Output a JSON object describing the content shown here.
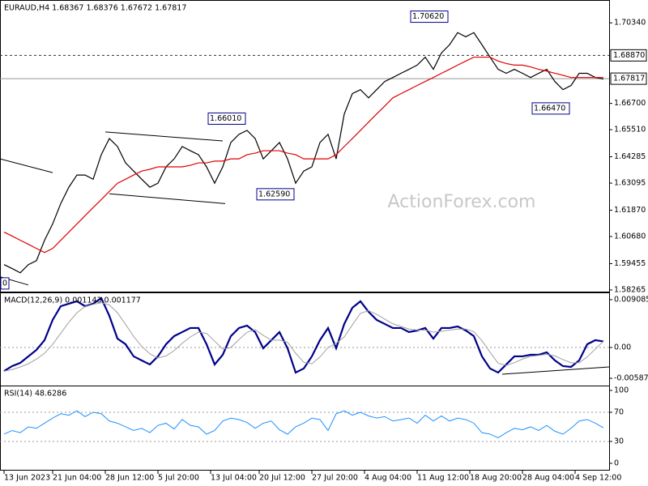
{
  "chart_data": [
    {
      "type": "line",
      "title": "EURAUD,H4  1.68367 1.68376 1.67672 1.67817",
      "watermark": "ActionForex.com",
      "x": [
        0,
        1,
        2,
        3,
        4,
        5,
        6,
        7,
        8,
        9,
        10,
        11,
        12,
        13,
        14,
        15,
        16,
        17,
        18,
        19,
        20,
        21,
        22,
        23,
        24,
        25,
        26,
        27,
        28,
        29,
        30,
        31,
        32,
        33,
        34,
        35,
        36,
        37,
        38,
        39,
        40,
        41,
        42,
        43,
        44,
        45,
        46,
        47,
        48,
        49,
        50,
        51,
        52,
        53,
        54,
        55,
        56,
        57,
        58,
        59,
        60,
        61,
        62,
        63,
        64,
        65,
        66,
        67,
        68,
        69,
        70,
        71,
        72,
        73,
        74
      ],
      "series": [
        {
          "color": "#000000",
          "width": 1.2,
          "values": [
            1.5941,
            1.5923,
            1.5904,
            1.5941,
            1.5959,
            1.6051,
            1.6125,
            1.6217,
            1.6291,
            1.6346,
            1.6346,
            1.6327,
            1.6438,
            1.6511,
            1.6475,
            1.6401,
            1.6364,
            1.6327,
            1.6291,
            1.6309,
            1.6383,
            1.6419,
            1.6475,
            1.6456,
            1.6438,
            1.6383,
            1.6309,
            1.6383,
            1.6493,
            1.653,
            1.6548,
            1.6511,
            1.6419,
            1.6456,
            1.6493,
            1.6419,
            1.6309,
            1.6364,
            1.6383,
            1.6493,
            1.653,
            1.6419,
            1.6622,
            1.6714,
            1.6732,
            1.6695,
            1.6732,
            1.6769,
            1.6787,
            1.6806,
            1.6824,
            1.6843,
            1.6879,
            1.6824,
            1.6898,
            1.6935,
            1.699,
            1.6971,
            1.699,
            1.6935,
            1.6879,
            1.6824,
            1.6806,
            1.6824,
            1.6806,
            1.6787,
            1.6806,
            1.6824,
            1.6769,
            1.6732,
            1.6751,
            1.6806,
            1.6806,
            1.6787,
            1.678
          ]
        },
        {
          "color": "#e00000",
          "width": 1.2,
          "values": [
            1.6088,
            1.607,
            1.6051,
            1.6033,
            1.6014,
            1.5996,
            1.6014,
            1.6051,
            1.6088,
            1.6125,
            1.6162,
            1.6199,
            1.6235,
            1.6272,
            1.6309,
            1.6327,
            1.6346,
            1.6364,
            1.6372,
            1.6383,
            1.6383,
            1.6383,
            1.6383,
            1.639,
            1.6401,
            1.6401,
            1.6409,
            1.6409,
            1.6419,
            1.6419,
            1.6438,
            1.6445,
            1.6456,
            1.6456,
            1.6456,
            1.6445,
            1.6438,
            1.6419,
            1.6419,
            1.6419,
            1.6419,
            1.6438,
            1.6475,
            1.6511,
            1.6548,
            1.6585,
            1.6622,
            1.6658,
            1.6695,
            1.6714,
            1.6732,
            1.6751,
            1.6769,
            1.6787,
            1.6806,
            1.6824,
            1.6843,
            1.6861,
            1.6879,
            1.6879,
            1.6879,
            1.6861,
            1.685,
            1.6843,
            1.6843,
            1.6835,
            1.6824,
            1.6816,
            1.6806,
            1.6797,
            1.6787,
            1.6787,
            1.6787,
            1.6787,
            1.6787
          ]
        }
      ],
      "xlim": [
        -0.5,
        74.7
      ],
      "ylim": [
        1.5819,
        1.713
      ],
      "yticks": [
        {
          "value": 1.7034,
          "label": "1.70340"
        },
        {
          "value": 1.667,
          "label": "1.66700"
        },
        {
          "value": 1.6551,
          "label": "1.65510"
        },
        {
          "value": 1.64285,
          "label": "1.64285"
        },
        {
          "value": 1.63095,
          "label": "1.63095"
        },
        {
          "value": 1.6187,
          "label": "1.61870"
        },
        {
          "value": 1.6068,
          "label": "1.60680"
        },
        {
          "value": 1.59455,
          "label": "1.59455"
        },
        {
          "value": 1.58265,
          "label": "1.58265"
        }
      ],
      "hlines": [
        {
          "value": 1.6887,
          "label": "1.68870",
          "style": "dashed"
        },
        {
          "value": 1.67817,
          "label": "1.67817",
          "style": "solid"
        }
      ],
      "annotations": [
        {
          "x": 55,
          "value": 1.7062,
          "label": "1.70620"
        },
        {
          "x": 30,
          "value": 1.6601,
          "label": "1.66010"
        },
        {
          "x": 36,
          "value": 1.6259,
          "label": "1.62590"
        },
        {
          "x": 70,
          "value": 1.6647,
          "label": "1.66470"
        },
        {
          "x": 0,
          "value": 1.5856,
          "label": "0"
        }
      ],
      "trendlines": [
        {
          "x": [
            12.5,
            27
          ],
          "values": [
            1.6541,
            1.65
          ]
        },
        {
          "x": [
            13,
            27.3
          ],
          "values": [
            1.6261,
            1.6217
          ]
        },
        {
          "x": [
            -0.5,
            6
          ],
          "values": [
            1.6419,
            1.6357
          ]
        },
        {
          "x": [
            -0.5,
            3
          ],
          "values": [
            1.5886,
            1.5849
          ]
        }
      ]
    },
    {
      "type": "line",
      "title": "MACD(12,26,9) 0.001143 0.001177",
      "x": [
        0,
        1,
        2,
        3,
        4,
        5,
        6,
        7,
        8,
        9,
        10,
        11,
        12,
        13,
        14,
        15,
        16,
        17,
        18,
        19,
        20,
        21,
        22,
        23,
        24,
        25,
        26,
        27,
        28,
        29,
        30,
        31,
        32,
        33,
        34,
        35,
        36,
        37,
        38,
        39,
        40,
        41,
        42,
        43,
        44,
        45,
        46,
        47,
        48,
        49,
        50,
        51,
        52,
        53,
        54,
        55,
        56,
        57,
        58,
        59,
        60,
        61,
        62,
        63,
        64,
        65,
        66,
        67,
        68,
        69,
        70,
        71,
        72,
        73,
        74
      ],
      "series": [
        {
          "color": "#00008b",
          "width": 2.2,
          "values": [
            -0.00447,
            -0.00354,
            -0.00293,
            -0.00169,
            -0.00046,
            0.00139,
            0.00524,
            0.00785,
            0.00832,
            0.00878,
            0.00785,
            0.00832,
            0.00939,
            0.00601,
            0.00169,
            0.00062,
            -0.00169,
            -0.00246,
            -0.00323,
            -0.00169,
            0.00062,
            0.00216,
            0.00293,
            0.0037,
            0.0037,
            0.00062,
            -0.00323,
            -0.00139,
            0.00216,
            0.0037,
            0.00416,
            0.00293,
            -0.00015,
            0.00139,
            0.00293,
            -0.00015,
            -0.00477,
            -0.004,
            -0.00169,
            0.00139,
            0.0037,
            -0.00015,
            0.00447,
            0.00755,
            0.00878,
            0.00678,
            0.00524,
            0.00447,
            0.0037,
            0.0037,
            0.00293,
            0.00323,
            0.0037,
            0.00169,
            0.0037,
            0.0037,
            0.004,
            0.00323,
            0.00216,
            -0.00169,
            -0.004,
            -0.00477,
            -0.00323,
            -0.00169,
            -0.00169,
            -0.00139,
            -0.00139,
            -0.00092,
            -0.00246,
            -0.00354,
            -0.0037,
            -0.00246,
            0.00062,
            0.00139,
            0.00114
          ]
        },
        {
          "color": "#a0a0a0",
          "width": 1,
          "values": [
            -0.0045,
            -0.0042,
            -0.0037,
            -0.0031,
            -0.0022,
            -0.0011,
            0.0006,
            0.0027,
            0.0048,
            0.0066,
            0.0078,
            0.0082,
            0.0085,
            0.0081,
            0.0066,
            0.0044,
            0.0021,
            0.0002,
            -0.0012,
            -0.002,
            -0.0016,
            -0.0006,
            0.0008,
            0.002,
            0.0029,
            0.0027,
            0.0012,
            -0.0003,
            0,
            0.0015,
            0.0029,
            0.0034,
            0.0023,
            0.0014,
            0.0014,
            0.001,
            -0.0011,
            -0.0028,
            -0.0031,
            -0.0018,
            0,
            0.0008,
            0.002,
            0.0043,
            0.0065,
            0.007,
            0.0063,
            0.0054,
            0.0045,
            0.004,
            0.0035,
            0.0033,
            0.0033,
            0.0029,
            0.0031,
            0.0033,
            0.0035,
            0.0035,
            0.003,
            0.0013,
            -0.0009,
            -0.003,
            -0.0034,
            -0.0029,
            -0.0022,
            -0.0017,
            -0.0015,
            -0.0013,
            -0.0016,
            -0.0023,
            -0.0029,
            -0.0029,
            -0.0018,
            -0.0003,
            0.00118
          ]
        }
      ],
      "xlim": [
        -0.5,
        74.7
      ],
      "ylim": [
        -0.00724,
        0.01016
      ],
      "yticks": [
        0.009085,
        {
          "value": 0,
          "label": "0.00"
        },
        -0.00587
      ],
      "levels": [
        0
      ],
      "trendlines": [
        {
          "x": [
            61.5,
            74.7
          ],
          "values": [
            -0.00508,
            -0.0037
          ]
        }
      ]
    },
    {
      "type": "line",
      "title": "RSI(14) 48.6286",
      "x": [
        0,
        1,
        2,
        3,
        4,
        5,
        6,
        7,
        8,
        9,
        10,
        11,
        12,
        13,
        14,
        15,
        16,
        17,
        18,
        19,
        20,
        21,
        22,
        23,
        24,
        25,
        26,
        27,
        28,
        29,
        30,
        31,
        32,
        33,
        34,
        35,
        36,
        37,
        38,
        39,
        40,
        41,
        42,
        43,
        44,
        45,
        46,
        47,
        48,
        49,
        50,
        51,
        52,
        53,
        54,
        55,
        56,
        57,
        58,
        59,
        60,
        61,
        62,
        63,
        64,
        65,
        66,
        67,
        68,
        69,
        70,
        71,
        72,
        73,
        74
      ],
      "series": [
        {
          "color": "#1e90ff",
          "width": 1,
          "values": [
            40,
            45,
            42,
            50,
            48,
            55,
            62,
            68,
            66,
            72,
            64,
            70,
            68,
            58,
            55,
            50,
            45,
            48,
            42,
            52,
            55,
            47,
            60,
            52,
            50,
            40,
            45,
            58,
            62,
            60,
            56,
            48,
            55,
            58,
            46,
            40,
            50,
            55,
            62,
            60,
            45,
            68,
            72,
            66,
            70,
            65,
            62,
            64,
            58,
            60,
            62,
            55,
            66,
            58,
            65,
            58,
            62,
            60,
            55,
            42,
            40,
            35,
            42,
            48,
            46,
            50,
            45,
            52,
            44,
            40,
            48,
            58,
            60,
            55,
            48.6
          ]
        }
      ],
      "xlim": [
        -0.5,
        74.7
      ],
      "ylim": [
        -8.9,
        104.4
      ],
      "yticks": [
        100,
        70,
        30,
        0
      ],
      "levels": [
        70,
        30
      ],
      "xticks": [
        {
          "value": 0,
          "label": "13 Jun 2023"
        },
        {
          "value": 6,
          "label": "21 Jun 04:00"
        },
        {
          "value": 12.5,
          "label": "28 Jun 12:00"
        },
        {
          "value": 19,
          "label": "5 Jul 20:00"
        },
        {
          "value": 25.5,
          "label": "13 Jul 04:00"
        },
        {
          "value": 31.5,
          "label": "20 Jul 12:00"
        },
        {
          "value": 38,
          "label": "27 Jul 20:00"
        },
        {
          "value": 44.5,
          "label": "4 Aug 04:00"
        },
        {
          "value": 51,
          "label": "11 Aug 12:00"
        },
        {
          "value": 57.5,
          "label": "18 Aug 20:00"
        },
        {
          "value": 64,
          "label": "28 Aug 04:00"
        },
        {
          "value": 70.5,
          "label": "4 Sep 12:00"
        }
      ]
    }
  ]
}
